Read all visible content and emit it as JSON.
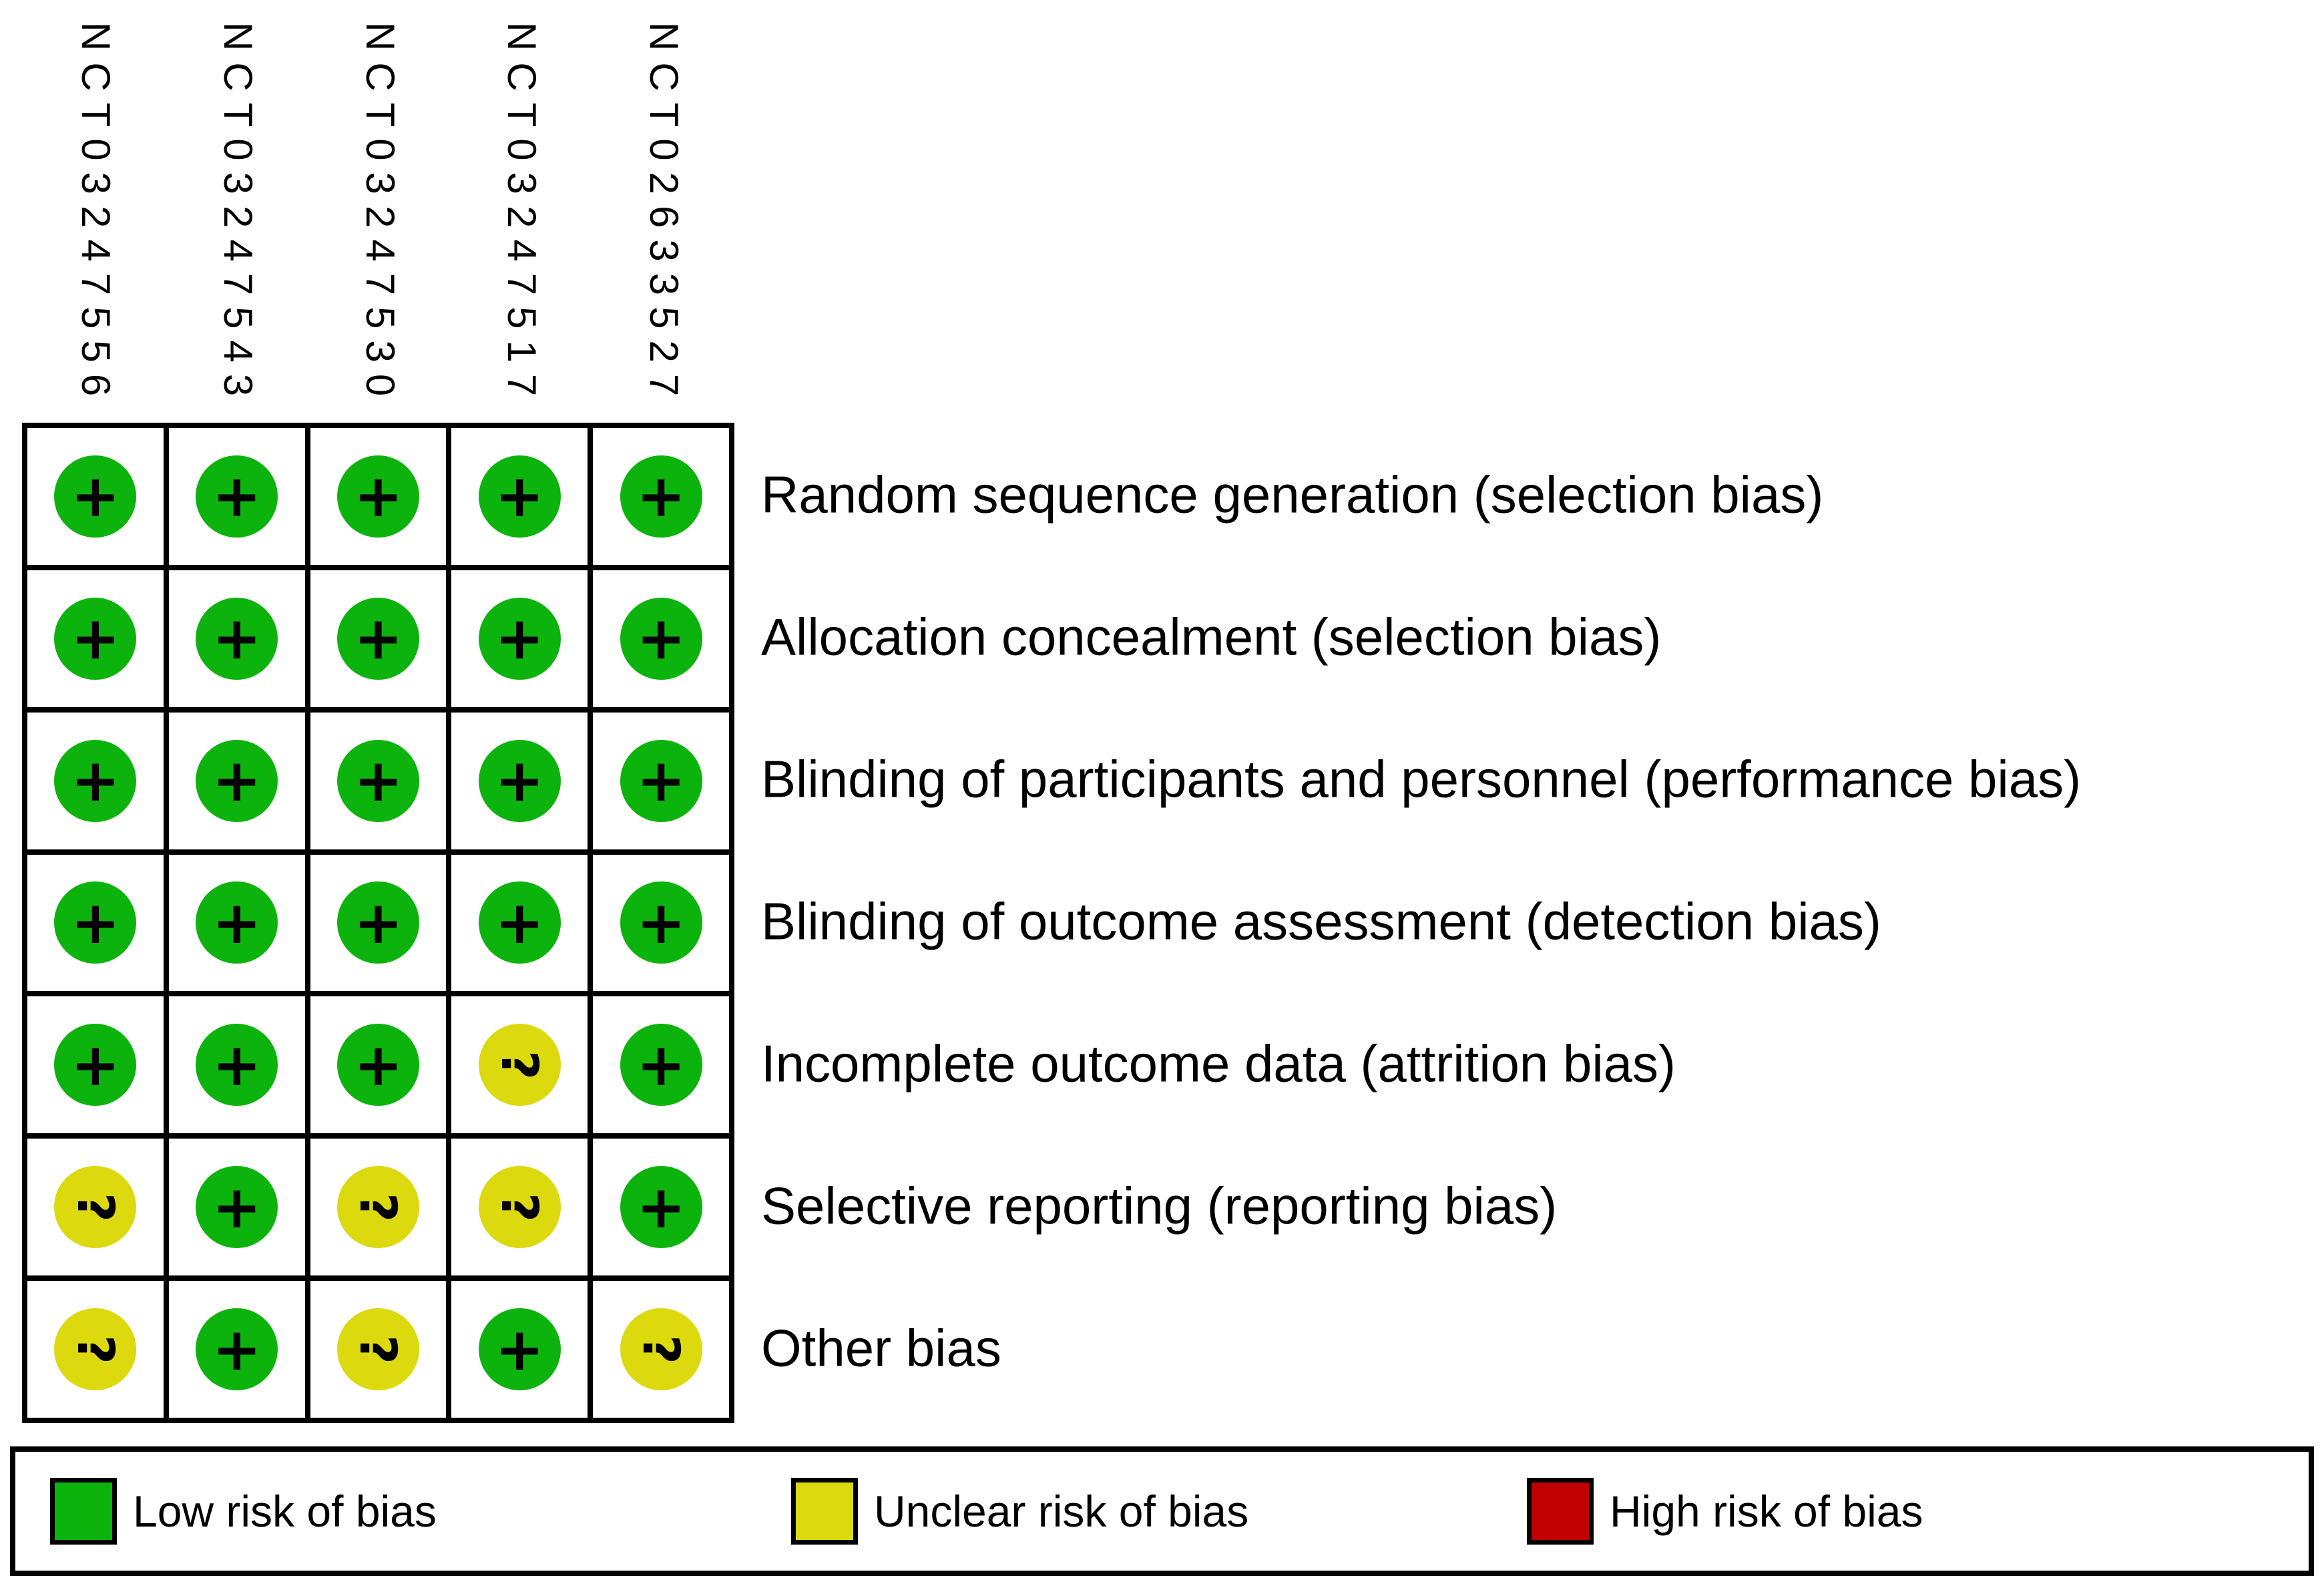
{
  "chart_data": {
    "type": "heatmap",
    "subtype": "risk-of-bias-summary",
    "columns": [
      "NCT03247556",
      "NCT03247543",
      "NCT03247530",
      "NCT03247517",
      "NCT02633527"
    ],
    "rows": [
      "Random sequence generation (selection bias)",
      "Allocation concealment (selection bias)",
      "Blinding of participants and personnel (performance bias)",
      "Blinding of outcome assessment (detection bias)",
      "Incomplete outcome data (attrition bias)",
      "Selective reporting (reporting bias)",
      "Other bias"
    ],
    "values": [
      [
        "low",
        "low",
        "low",
        "low",
        "low"
      ],
      [
        "low",
        "low",
        "low",
        "low",
        "low"
      ],
      [
        "low",
        "low",
        "low",
        "low",
        "low"
      ],
      [
        "low",
        "low",
        "low",
        "low",
        "low"
      ],
      [
        "low",
        "low",
        "low",
        "unclear",
        "low"
      ],
      [
        "unclear",
        "low",
        "unclear",
        "unclear",
        "low"
      ],
      [
        "unclear",
        "low",
        "unclear",
        "low",
        "unclear"
      ]
    ],
    "symbol_map": {
      "low": "+",
      "unclear": "?"
    },
    "color_map": {
      "low": "#0db30d",
      "unclear": "#dcd90f",
      "high": "#c00000"
    },
    "legend": [
      {
        "key": "low",
        "label": "Low risk of bias"
      },
      {
        "key": "unclear",
        "label": "Unclear risk of bias"
      },
      {
        "key": "high",
        "label": "High risk of bias"
      }
    ],
    "legend_position": "bottom",
    "grid": "on"
  }
}
